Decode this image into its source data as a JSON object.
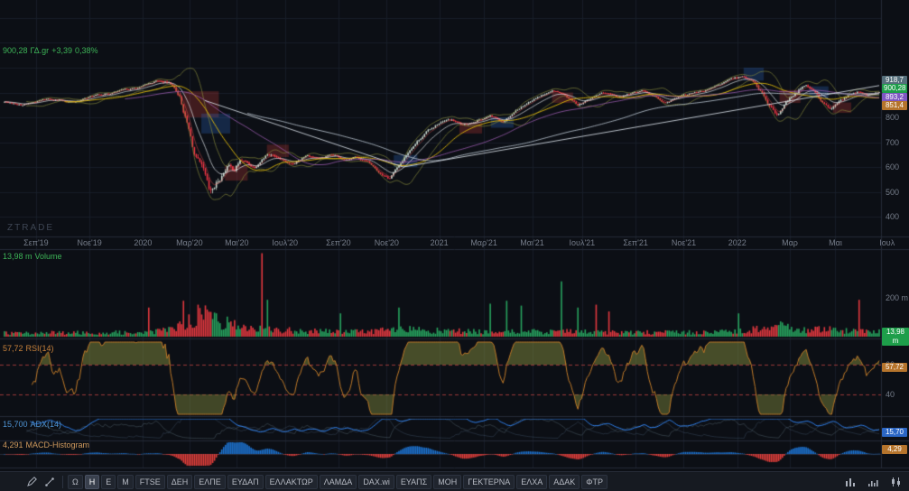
{
  "app": {
    "watermark": "ZTRADE"
  },
  "price_panel": {
    "legend": {
      "value": "900,28",
      "symbol": "ΓΔ.gr",
      "change": "+3,39",
      "change_pct": "0,38%"
    },
    "y_ticks": [
      800,
      700,
      600,
      500,
      400
    ],
    "scale_badges": [
      {
        "text": "918,7",
        "color": "#546e7a"
      },
      {
        "text": "900,28",
        "color": "#1e9e4a"
      },
      {
        "text": "893,2",
        "color": "#7e57c2"
      },
      {
        "text": "851,4",
        "color": "#b5742c"
      }
    ]
  },
  "x_axis": {
    "ticks": [
      {
        "label": "Σεπ'19",
        "t": 0.037
      },
      {
        "label": "Νοε'19",
        "t": 0.098
      },
      {
        "label": "2020",
        "t": 0.159
      },
      {
        "label": "Μαρ'20",
        "t": 0.212
      },
      {
        "label": "Μαι'20",
        "t": 0.266
      },
      {
        "label": "Ιουλ'20",
        "t": 0.321
      },
      {
        "label": "Σεπ'20",
        "t": 0.382
      },
      {
        "label": "Νοε'20",
        "t": 0.437
      },
      {
        "label": "2021",
        "t": 0.497
      },
      {
        "label": "Μαρ'21",
        "t": 0.548
      },
      {
        "label": "Μαι'21",
        "t": 0.603
      },
      {
        "label": "Ιουλ'21",
        "t": 0.66
      },
      {
        "label": "Σεπ'21",
        "t": 0.721
      },
      {
        "label": "Νοε'21",
        "t": 0.776
      },
      {
        "label": "2022",
        "t": 0.837
      },
      {
        "label": "Μαρ",
        "t": 0.897
      },
      {
        "label": "Μαι",
        "t": 0.949
      },
      {
        "label": "Ιουλ",
        "t": 1.008
      }
    ]
  },
  "volume_panel": {
    "legend_value": "13,98 m",
    "legend_label": "Volume",
    "y_tick": "200 m",
    "badge": "13,98 m"
  },
  "rsi_panel": {
    "legend_value": "57,72",
    "legend_label": "RSI(14)",
    "badge": "57,72",
    "upper": 60,
    "lower": 40
  },
  "adx_panel": {
    "legend_value": "15,700",
    "legend_label": "ADX(14)",
    "badge": "15,70"
  },
  "macd_panel": {
    "legend_value": "4,291",
    "legend_label": "MACD-Histogram",
    "badge": "4,29"
  },
  "toolbar": {
    "buttons": [
      {
        "label": "Ω",
        "active": false
      },
      {
        "label": "Η",
        "active": true
      },
      {
        "label": "Ε",
        "active": false
      },
      {
        "label": "Μ",
        "active": false
      },
      {
        "label": "FTSE",
        "active": false
      },
      {
        "label": "ΔΕΗ",
        "active": false
      },
      {
        "label": "ΕΛΠΕ",
        "active": false
      },
      {
        "label": "ΕΥΔΑΠ",
        "active": false
      },
      {
        "label": "ΕΛΛΑΚΤΩΡ",
        "active": false
      },
      {
        "label": "ΛΑΜΔΑ",
        "active": false
      },
      {
        "label": "DAX.wi",
        "active": false
      },
      {
        "label": "ΕΥΑΠΣ",
        "active": false
      },
      {
        "label": "ΜΟΗ",
        "active": false
      },
      {
        "label": "ΓΕΚΤΕΡΝΑ",
        "active": false
      },
      {
        "label": "ΕΛΧΑ",
        "active": false
      },
      {
        "label": "ΑΔΑΚ",
        "active": false
      },
      {
        "label": "ΦΤΡ",
        "active": false
      }
    ]
  },
  "colors": {
    "background": "#0c0f15",
    "grid": "#171d28",
    "accent_green": "#3db457",
    "candle_up": "#c9d6cc",
    "candle_down": "#f23645",
    "volume_up": "#27a35e",
    "volume_down": "#e2383f",
    "rsi_line": "#c07a28",
    "adx_line": "#2f80ed",
    "macd_pos": "#1d72cf",
    "macd_neg": "#e03e3a",
    "ma_yellow": "#d9b40b",
    "ma_white": "#dde3e8",
    "ma_purple": "#a05fb5",
    "ma_long": "#aeb9c4"
  },
  "chart_data": {
    "type": "candlestick",
    "symbol": "ΓΔ.gr",
    "title": "Athens General Index daily candles with Volume, RSI(14), ADX(14), MACD-Histogram",
    "last": 900.28,
    "change": 3.39,
    "change_pct": 0.38,
    "volume_last_m": 13.98,
    "rsi": 57.72,
    "adx": 15.7,
    "macd_hist": 4.291,
    "price_axis_ticks": [
      800,
      700,
      600,
      500,
      400
    ],
    "price_anchors": [
      [
        0.0,
        862
      ],
      [
        0.02,
        850
      ],
      [
        0.05,
        875
      ],
      [
        0.08,
        862
      ],
      [
        0.1,
        885
      ],
      [
        0.13,
        905
      ],
      [
        0.155,
        920
      ],
      [
        0.175,
        948
      ],
      [
        0.19,
        935
      ],
      [
        0.2,
        890
      ],
      [
        0.21,
        760
      ],
      [
        0.218,
        640
      ],
      [
        0.228,
        560
      ],
      [
        0.235,
        470
      ],
      [
        0.245,
        540
      ],
      [
        0.255,
        610
      ],
      [
        0.262,
        585
      ],
      [
        0.27,
        630
      ],
      [
        0.285,
        600
      ],
      [
        0.3,
        655
      ],
      [
        0.315,
        640
      ],
      [
        0.33,
        610
      ],
      [
        0.345,
        650
      ],
      [
        0.36,
        635
      ],
      [
        0.375,
        645
      ],
      [
        0.39,
        630
      ],
      [
        0.4,
        645
      ],
      [
        0.415,
        620
      ],
      [
        0.428,
        580
      ],
      [
        0.44,
        555
      ],
      [
        0.45,
        600
      ],
      [
        0.465,
        680
      ],
      [
        0.48,
        735
      ],
      [
        0.495,
        775
      ],
      [
        0.51,
        790
      ],
      [
        0.525,
        765
      ],
      [
        0.54,
        790
      ],
      [
        0.555,
        805
      ],
      [
        0.57,
        785
      ],
      [
        0.585,
        830
      ],
      [
        0.6,
        865
      ],
      [
        0.615,
        890
      ],
      [
        0.63,
        905
      ],
      [
        0.645,
        875
      ],
      [
        0.655,
        850
      ],
      [
        0.67,
        875
      ],
      [
        0.685,
        900
      ],
      [
        0.7,
        880
      ],
      [
        0.715,
        895
      ],
      [
        0.73,
        910
      ],
      [
        0.745,
        885
      ],
      [
        0.755,
        860
      ],
      [
        0.77,
        880
      ],
      [
        0.785,
        895
      ],
      [
        0.8,
        905
      ],
      [
        0.815,
        925
      ],
      [
        0.83,
        950
      ],
      [
        0.845,
        968
      ],
      [
        0.855,
        945
      ],
      [
        0.865,
        905
      ],
      [
        0.875,
        840
      ],
      [
        0.883,
        795
      ],
      [
        0.895,
        860
      ],
      [
        0.905,
        895
      ],
      [
        0.915,
        935
      ],
      [
        0.925,
        915
      ],
      [
        0.935,
        860
      ],
      [
        0.945,
        830
      ],
      [
        0.955,
        865
      ],
      [
        0.965,
        888
      ],
      [
        0.975,
        902
      ],
      [
        0.985,
        888
      ],
      [
        1.0,
        900
      ]
    ],
    "volatility_anchors": [
      [
        0,
        5
      ],
      [
        0.17,
        6
      ],
      [
        0.2,
        14
      ],
      [
        0.215,
        26
      ],
      [
        0.235,
        30
      ],
      [
        0.25,
        20
      ],
      [
        0.27,
        14
      ],
      [
        0.3,
        10
      ],
      [
        0.35,
        8
      ],
      [
        0.4,
        7
      ],
      [
        0.44,
        9
      ],
      [
        0.47,
        10
      ],
      [
        0.5,
        8
      ],
      [
        0.55,
        7
      ],
      [
        0.6,
        7
      ],
      [
        0.65,
        7
      ],
      [
        0.7,
        6
      ],
      [
        0.75,
        6
      ],
      [
        0.8,
        6
      ],
      [
        0.845,
        8
      ],
      [
        0.865,
        12
      ],
      [
        0.883,
        16
      ],
      [
        0.9,
        12
      ],
      [
        0.925,
        10
      ],
      [
        0.945,
        10
      ],
      [
        1,
        7
      ]
    ],
    "volume_spikes": [
      {
        "t": 0.165,
        "v": 150,
        "c": "r"
      },
      {
        "t": 0.205,
        "v": 185,
        "c": "r"
      },
      {
        "t": 0.222,
        "v": 165,
        "c": "r"
      },
      {
        "t": 0.232,
        "v": 140,
        "c": "r"
      },
      {
        "t": 0.295,
        "v": 430,
        "c": "r"
      },
      {
        "t": 0.3,
        "v": 190,
        "c": "g"
      },
      {
        "t": 0.385,
        "v": 120,
        "c": "g"
      },
      {
        "t": 0.45,
        "v": 150,
        "c": "g"
      },
      {
        "t": 0.555,
        "v": 170,
        "c": "g"
      },
      {
        "t": 0.575,
        "v": 185,
        "c": "g"
      },
      {
        "t": 0.59,
        "v": 160,
        "c": "g"
      },
      {
        "t": 0.636,
        "v": 285,
        "c": "g"
      },
      {
        "t": 0.655,
        "v": 150,
        "c": "g"
      },
      {
        "t": 0.676,
        "v": 165,
        "c": "r"
      },
      {
        "t": 0.69,
        "v": 130,
        "c": "r"
      },
      {
        "t": 0.84,
        "v": 120,
        "c": "g"
      },
      {
        "t": 0.978,
        "v": 190,
        "c": "r"
      }
    ],
    "trendlines": [
      {
        "t1": 0.229,
        "p1": 868,
        "t2": 0.456,
        "p2": 600
      },
      {
        "t1": 0.456,
        "p1": 600,
        "t2": 1.0,
        "p2": 928
      }
    ],
    "boxes": [
      {
        "t1": 0.205,
        "t2": 0.245,
        "p1": 800,
        "p2": 905,
        "c": "r"
      },
      {
        "t1": 0.225,
        "t2": 0.258,
        "p1": 735,
        "p2": 815,
        "c": "b"
      },
      {
        "t1": 0.252,
        "t2": 0.278,
        "p1": 545,
        "p2": 605,
        "c": "r"
      },
      {
        "t1": 0.3,
        "t2": 0.325,
        "p1": 640,
        "p2": 690,
        "c": "r"
      },
      {
        "t1": 0.445,
        "t2": 0.472,
        "p1": 600,
        "p2": 648,
        "c": "b"
      },
      {
        "t1": 0.52,
        "t2": 0.546,
        "p1": 735,
        "p2": 778,
        "c": "r"
      },
      {
        "t1": 0.556,
        "t2": 0.582,
        "p1": 758,
        "p2": 800,
        "c": "b"
      },
      {
        "t1": 0.626,
        "t2": 0.65,
        "p1": 858,
        "p2": 900,
        "c": "r"
      },
      {
        "t1": 0.845,
        "t2": 0.868,
        "p1": 948,
        "p2": 1000,
        "c": "b"
      },
      {
        "t1": 0.886,
        "t2": 0.91,
        "p1": 858,
        "p2": 910,
        "c": "r"
      },
      {
        "t1": 0.92,
        "t2": 0.942,
        "p1": 878,
        "p2": 925,
        "c": "b"
      },
      {
        "t1": 0.947,
        "t2": 0.968,
        "p1": 818,
        "p2": 860,
        "c": "r"
      }
    ]
  }
}
